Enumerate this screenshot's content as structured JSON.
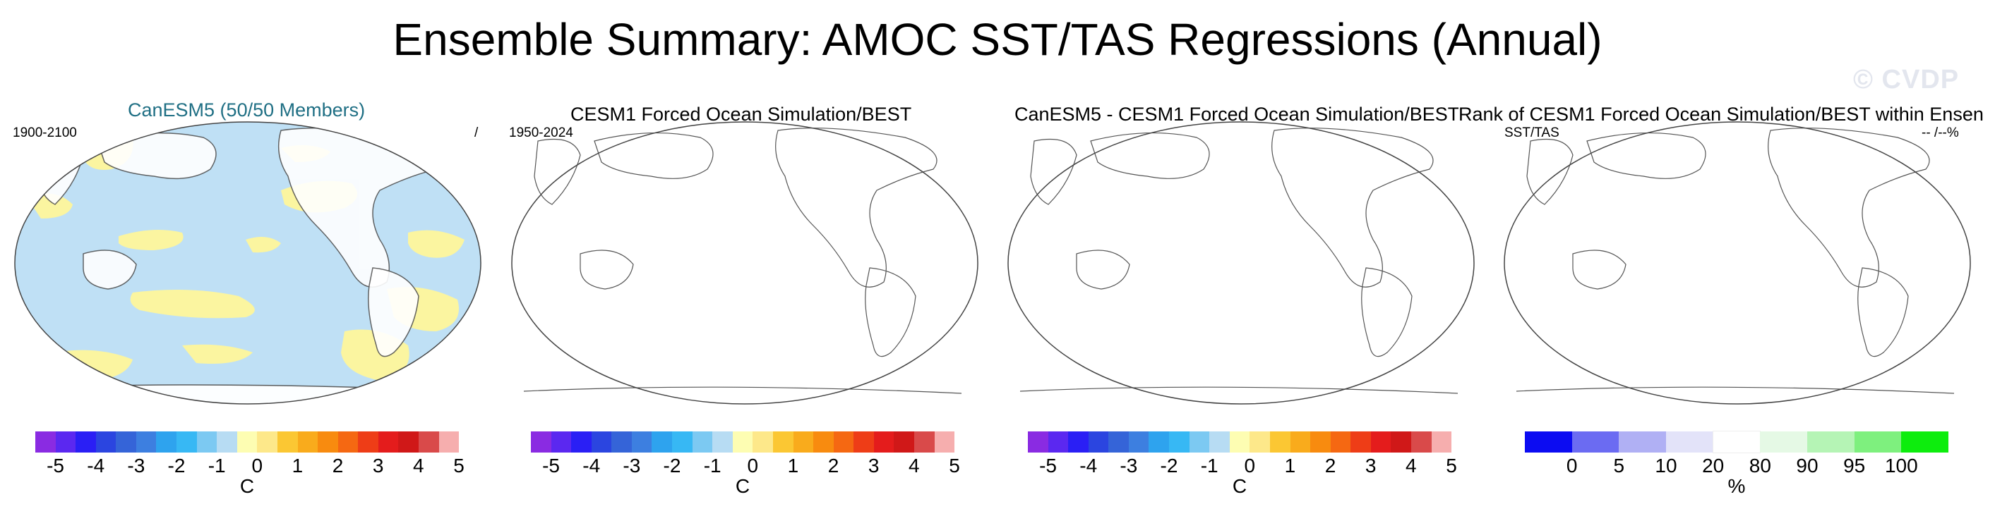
{
  "figure": {
    "title": "Ensemble Summary: AMOC SST/TAS Regressions (Annual)",
    "watermark": "© CVDP"
  },
  "panels": [
    {
      "title": "CanESM5 (50/50 Members)",
      "left_label": "1900-2100",
      "right_label": "/"
    },
    {
      "title": "CESM1 Forced Ocean Simulation/BEST",
      "left_label": "1950-2024",
      "right_label": ""
    },
    {
      "title": "CanESM5 - CESM1 Forced Ocean Simulation/BEST",
      "left_label": "",
      "right_label": ""
    },
    {
      "title": "Rank of CESM1 Forced Ocean Simulation/BEST within Ensen",
      "left_label": "SST/TAS",
      "right_label": "-- /--%"
    }
  ],
  "colorbars": {
    "regression": {
      "unit": "C",
      "ticks": [
        "-5",
        "-4",
        "-3",
        "-2",
        "-1",
        "0",
        "1",
        "2",
        "3",
        "4",
        "5"
      ],
      "colors": [
        "#8a2be2",
        "#5b28f0",
        "#2a1ff5",
        "#2b45e0",
        "#3564d8",
        "#3d7fe0",
        "#2ea3ee",
        "#37b8f4",
        "#7cc9f2",
        "#b7dcf3",
        "#fdfdb2",
        "#fde88a",
        "#fbc733",
        "#f9ab1c",
        "#f88b0f",
        "#f56812",
        "#ee3d17",
        "#e41c1c",
        "#d01818",
        "#d94a4a",
        "#f6aeae"
      ]
    },
    "rank": {
      "unit": "%",
      "ticks": [
        "0",
        "5",
        "10",
        "20",
        "80",
        "90",
        "95",
        "100"
      ],
      "colors": [
        "#0c0cf2",
        "#6b6bf2",
        "#b0b0f4",
        "#e3e3f9",
        "#ffffff",
        "#e5f9e5",
        "#b5f4b5",
        "#7ef07e",
        "#0ded0d"
      ]
    }
  },
  "chart_data": [
    {
      "type": "heatmap",
      "title": "CanESM5 (50/50 Members)",
      "period": "1900-2100",
      "values": "regression map with near-zero values: dominant class -1 to -0.5 C (light blue) with scattered areas of -0.5 to 0 C / 0 to 0.5 C (light yellow)",
      "colorbar": "regression"
    },
    {
      "type": "heatmap",
      "title": "CESM1 Forced Ocean Simulation/BEST",
      "period": "1950-2024",
      "values": "no data shown",
      "colorbar": "regression"
    },
    {
      "type": "heatmap",
      "title": "CanESM5 - CESM1 Forced Ocean Simulation/BEST",
      "values": "no data shown",
      "colorbar": "regression"
    },
    {
      "type": "heatmap",
      "title": "Rank of CESM1 Forced Ocean Simulation/BEST within Ensen",
      "values": "no data shown",
      "colorbar": "rank"
    }
  ]
}
